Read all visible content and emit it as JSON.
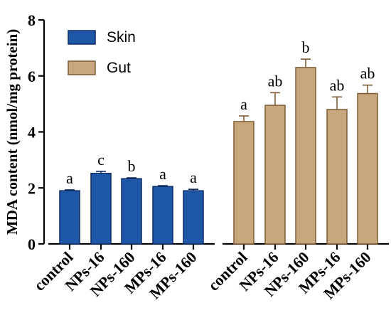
{
  "chart_data": {
    "type": "bar",
    "ylabel": "MDA content (nmol/mg protein)",
    "ylim": [
      0,
      8
    ],
    "yticks": [
      "0",
      "2",
      "4",
      "6",
      "8"
    ],
    "grid": false,
    "legend_position": "top-left",
    "series": [
      {
        "name": "Skin",
        "color": "#1f57a8",
        "edge_color": "#0c2b63",
        "categories": [
          "control",
          "NPs-16",
          "NPs-160",
          "MPs-16",
          "MPs-160"
        ],
        "values": [
          1.9,
          2.52,
          2.33,
          2.05,
          1.9
        ],
        "errors": [
          0.03,
          0.07,
          0.03,
          0.03,
          0.05
        ],
        "significance": [
          "a",
          "c",
          "b",
          "a",
          "a"
        ]
      },
      {
        "name": "Gut",
        "color": "#c9a77c",
        "edge_color": "#7d5b34",
        "categories": [
          "control",
          "NPs-16",
          "NPs-160",
          "MPs-16",
          "MPs-160"
        ],
        "values": [
          4.37,
          4.95,
          6.3,
          4.8,
          5.37
        ],
        "errors": [
          0.2,
          0.45,
          0.3,
          0.45,
          0.3
        ],
        "significance": [
          "a",
          "ab",
          "b",
          "ab",
          "ab"
        ]
      }
    ]
  }
}
